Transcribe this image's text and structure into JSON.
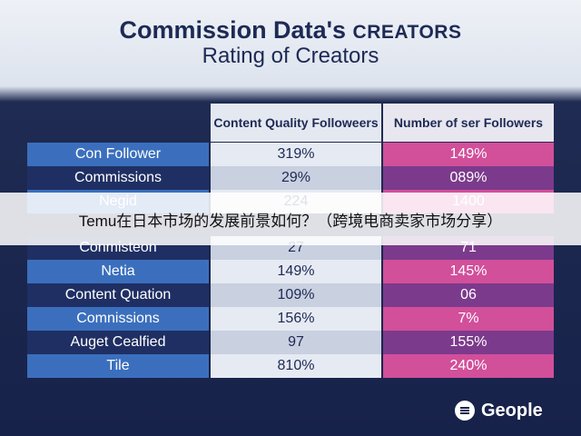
{
  "header": {
    "title": "Commission Data's",
    "title_caps": "CREATORS",
    "subtitle": "Rating of Creators"
  },
  "table": {
    "columns": [
      "Content Quality Followeers",
      "Number of ser Followers"
    ],
    "rows": [
      [
        "Con Follower",
        "319%",
        "149%"
      ],
      [
        "Commissions",
        "29%",
        "089%"
      ],
      [
        "Negid",
        "224",
        "1400"
      ],
      [
        "Conmisteon",
        "27",
        "71"
      ],
      [
        "Netia",
        "149%",
        "145%"
      ],
      [
        "Content Quation",
        "109%",
        "06"
      ],
      [
        "Comnissions",
        "156%",
        "7%"
      ],
      [
        "Auget Cealfied",
        "97",
        "155%"
      ],
      [
        "Tile",
        "810%",
        "240%"
      ]
    ]
  },
  "banner": "Temu在日本市场的发展前景如何？（跨境电商卖家市场分享）",
  "footer": {
    "logo": "Geople"
  }
}
